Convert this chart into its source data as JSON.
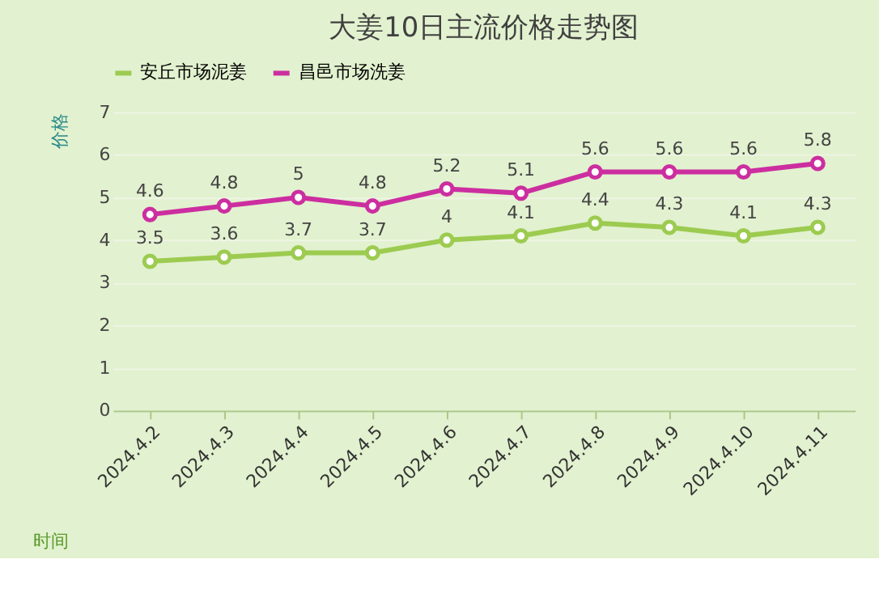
{
  "chart_data": {
    "type": "line",
    "title": "大姜10日主流价格走势图",
    "xlabel": "时间",
    "ylabel": "价格",
    "categories": [
      "2024.4.2",
      "2024.4.3",
      "2024.4.4",
      "2024.4.5",
      "2024.4.6",
      "2024.4.7",
      "2024.4.8",
      "2024.4.9",
      "2024.4.10",
      "2024.4.11"
    ],
    "series": [
      {
        "name": "安丘市场泥姜",
        "color": "#9ccb50",
        "values": [
          3.5,
          3.6,
          3.7,
          3.7,
          4,
          4.1,
          4.4,
          4.3,
          4.1,
          4.3
        ]
      },
      {
        "name": "昌邑市场洗姜",
        "color": "#cc2ea0",
        "values": [
          4.6,
          4.8,
          5,
          4.8,
          5.2,
          5.1,
          5.6,
          5.6,
          5.6,
          5.8
        ]
      }
    ],
    "ylim": [
      0,
      7
    ],
    "yticks": [
      0,
      1,
      2,
      3,
      4,
      5,
      6,
      7
    ],
    "grid": "y",
    "legend": "top left",
    "marker": "circle",
    "line_style": "solid",
    "data_labels": true
  }
}
